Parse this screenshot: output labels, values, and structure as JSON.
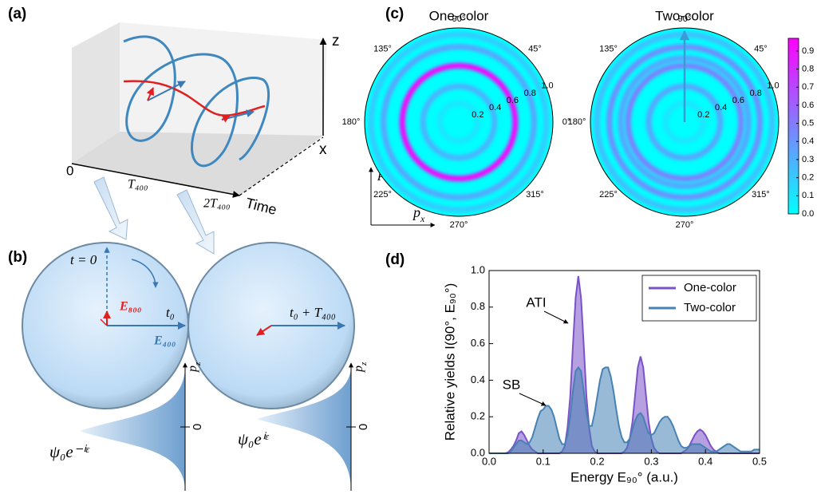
{
  "panel_a": {
    "label": "(a)",
    "axis_z": "z",
    "axis_x": "x",
    "axis_time": "Time",
    "time_ticks": [
      "0",
      "T₄₀₀",
      "2T₄₀₀"
    ]
  },
  "panel_b": {
    "label": "(b)",
    "t_zero": "t = 0",
    "e800": "E₈₀₀",
    "e400": "E₄₀₀",
    "t0": "t₀",
    "t0_plus": "t₀ + T₄₀₀",
    "pz": {
      "main": "p",
      "sub": "z"
    },
    "zero": "0",
    "psi_left": "ψ₀e⁻ⁱᵋ",
    "psi_right": "ψ₀eⁱᵋ"
  },
  "panel_c": {
    "label": "(c)",
    "angle_ticks": [
      {
        "value": 0,
        "label": "0°"
      },
      {
        "value": 45,
        "label": "45°"
      },
      {
        "value": 90,
        "label": "90°"
      },
      {
        "value": 135,
        "label": "135°"
      },
      {
        "value": 180,
        "label": "180°"
      },
      {
        "value": 225,
        "label": "225°"
      },
      {
        "value": 270,
        "label": "270°"
      },
      {
        "value": 315,
        "label": "315°"
      }
    ],
    "rlim": [
      0,
      1
    ],
    "radial_ticks": [
      0.2,
      0.4,
      0.6,
      0.8,
      {
        "value": 1.0,
        "label": "1.0"
      }
    ],
    "plots": [
      {
        "title": "One-color",
        "rings": [
          {
            "r": 0.2,
            "intensity": 0.1
          },
          {
            "r": 0.38,
            "intensity": 0.3
          },
          {
            "r": 0.6,
            "intensity": 0.95
          },
          {
            "r": 0.8,
            "intensity": 0.35
          },
          {
            "r": 0.93,
            "intensity": 0.2
          }
        ]
      },
      {
        "title": "Two-color",
        "rings": [
          {
            "r": 0.2,
            "intensity": 0.1
          },
          {
            "r": 0.38,
            "intensity": 0.35
          },
          {
            "r": 0.6,
            "intensity": 0.5
          },
          {
            "r": 0.68,
            "intensity": 0.35
          },
          {
            "r": 0.8,
            "intensity": 0.45
          },
          {
            "r": 0.93,
            "intensity": 0.25
          }
        ]
      }
    ],
    "px": {
      "main": "p",
      "sub": "x"
    },
    "pz": {
      "main": "p",
      "sub": "z"
    },
    "colorbar": {
      "lim": [
        0,
        0.97
      ],
      "colors": [
        "#00ffff",
        "#ff00ff"
      ],
      "ticks": [
        {
          "value": 0,
          "label": "0.0"
        },
        0.1,
        0.2,
        0.3,
        0.4,
        0.5,
        0.6,
        0.7,
        0.8,
        0.9
      ]
    }
  },
  "panel_d": {
    "label": "(d)"
  },
  "chart_data": {
    "type": "area",
    "xlabel": "Energy  E₉₀° (a.u.)",
    "ylabel": "Relative yields I(90°, E₉₀°)",
    "xlim": [
      0,
      0.5
    ],
    "ylim": [
      0,
      1
    ],
    "xticks": [
      {
        "value": 0,
        "label": "0.0"
      },
      0.1,
      0.2,
      0.3,
      0.4,
      0.5
    ],
    "yticks": [
      {
        "value": 0,
        "label": "0.0"
      },
      0.2,
      0.4,
      0.6,
      0.8,
      {
        "value": 1,
        "label": "1.0"
      }
    ],
    "legend": "upper right",
    "annotations": [
      "ATI",
      "SB"
    ],
    "x": [
      0,
      0.005,
      0.01,
      0.015,
      0.02,
      0.025,
      0.03,
      0.035,
      0.04,
      0.045,
      0.05,
      0.055,
      0.06,
      0.065,
      0.07,
      0.075,
      0.08,
      0.085,
      0.09,
      0.095,
      0.1,
      0.105,
      0.11,
      0.115,
      0.12,
      0.125,
      0.13,
      0.135,
      0.14,
      0.145,
      0.15,
      0.155,
      0.16,
      0.165,
      0.17,
      0.175,
      0.18,
      0.185,
      0.19,
      0.195,
      0.2,
      0.205,
      0.21,
      0.215,
      0.22,
      0.225,
      0.23,
      0.235,
      0.24,
      0.245,
      0.25,
      0.255,
      0.26,
      0.265,
      0.27,
      0.275,
      0.28,
      0.285,
      0.29,
      0.295,
      0.3,
      0.305,
      0.31,
      0.315,
      0.32,
      0.325,
      0.33,
      0.335,
      0.34,
      0.345,
      0.35,
      0.355,
      0.36,
      0.365,
      0.37,
      0.375,
      0.38,
      0.385,
      0.39,
      0.395,
      0.4,
      0.405,
      0.41,
      0.415,
      0.42,
      0.425,
      0.43,
      0.435,
      0.44,
      0.445,
      0.45,
      0.455,
      0.46,
      0.465,
      0.47,
      0.475,
      0.48,
      0.485,
      0.49,
      0.495,
      0.5
    ],
    "series": [
      {
        "name": "One-color",
        "color": "#7b52c8",
        "values": [
          0,
          0,
          0,
          0,
          0,
          0,
          0,
          0.005,
          0.02,
          0.04,
          0.07,
          0.11,
          0.12,
          0.1,
          0.07,
          0.04,
          0.02,
          0.01,
          0,
          0,
          0,
          0,
          0,
          0,
          0,
          0,
          0,
          0.01,
          0.04,
          0.14,
          0.31,
          0.59,
          0.85,
          0.97,
          0.85,
          0.59,
          0.31,
          0.14,
          0.04,
          0.01,
          0,
          0,
          0,
          0,
          0,
          0,
          0,
          0,
          0,
          0,
          0.01,
          0.03,
          0.08,
          0.17,
          0.32,
          0.47,
          0.53,
          0.47,
          0.32,
          0.17,
          0.08,
          0.03,
          0.01,
          0,
          0,
          0,
          0,
          0,
          0,
          0,
          0,
          0,
          0.01,
          0.02,
          0.04,
          0.07,
          0.1,
          0.12,
          0.13,
          0.12,
          0.1,
          0.07,
          0.04,
          0.02,
          0.01,
          0,
          0,
          0,
          0,
          0,
          0,
          0,
          0,
          0,
          0,
          0,
          0,
          0,
          0,
          0,
          0
        ]
      },
      {
        "name": "Two-color",
        "color": "#4682b4",
        "values": [
          0,
          0,
          0,
          0,
          0,
          0,
          0,
          0,
          0.01,
          0.03,
          0.05,
          0.07,
          0.07,
          0.06,
          0.05,
          0.06,
          0.09,
          0.14,
          0.19,
          0.23,
          0.24,
          0.26,
          0.26,
          0.24,
          0.2,
          0.14,
          0.08,
          0.05,
          0.05,
          0.1,
          0.2,
          0.34,
          0.45,
          0.47,
          0.45,
          0.34,
          0.22,
          0.15,
          0.15,
          0.22,
          0.31,
          0.4,
          0.46,
          0.47,
          0.47,
          0.42,
          0.34,
          0.24,
          0.15,
          0.09,
          0.06,
          0.06,
          0.08,
          0.13,
          0.18,
          0.21,
          0.22,
          0.2,
          0.15,
          0.11,
          0.1,
          0.11,
          0.14,
          0.17,
          0.19,
          0.2,
          0.2,
          0.18,
          0.15,
          0.11,
          0.07,
          0.04,
          0.03,
          0.03,
          0.04,
          0.05,
          0.05,
          0.05,
          0.05,
          0.04,
          0.03,
          0.02,
          0.01,
          0.01,
          0.01,
          0.02,
          0.03,
          0.04,
          0.05,
          0.05,
          0.04,
          0.03,
          0.02,
          0.01,
          0.01,
          0.01,
          0.01,
          0.01,
          0.02,
          0.02,
          0.02
        ]
      }
    ]
  }
}
